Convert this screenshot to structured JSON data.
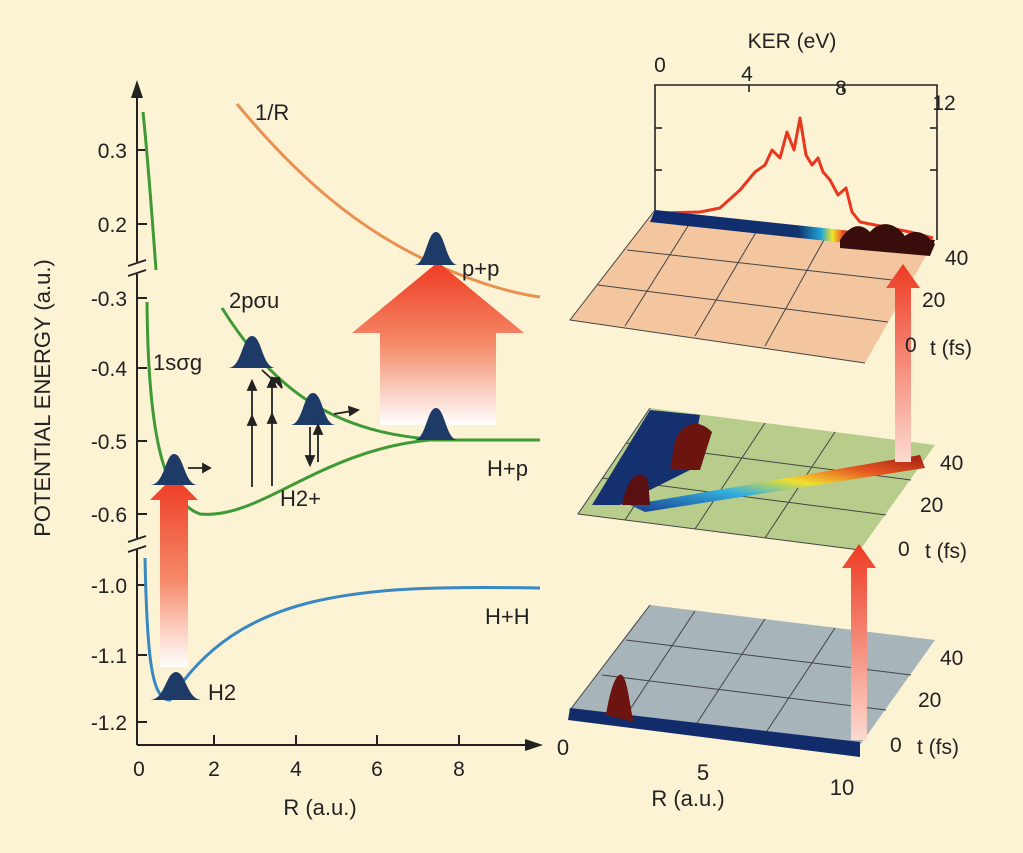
{
  "left_panel": {
    "y_axis_label": "POTENTIAL ENERGY (a.u.)",
    "x_axis_label": "R (a.u.)",
    "x_ticks": [
      "0",
      "2",
      "4",
      "6",
      "8"
    ],
    "y_ticks_upper": [
      "0.3",
      "0.2"
    ],
    "y_ticks_middle": [
      "-0.3",
      "-0.4",
      "-0.5",
      "-0.6"
    ],
    "y_ticks_lower": [
      "-1.0",
      "-1.1",
      "-1.2"
    ],
    "curve_labels": {
      "coulomb": "1/R",
      "sigma_u": "2pσu",
      "sigma_g": "1sσg",
      "proton_proton": "p+p",
      "h_plus_p": "H+p",
      "h_plus_h": "H+H",
      "h2": "H2",
      "h2_plus": "H2+"
    }
  },
  "right_panel": {
    "ker_axis_label": "KER (eV)",
    "ker_ticks": [
      "0",
      "4",
      "8",
      "12"
    ],
    "r_axis_label": "R (a.u.)",
    "r_ticks": [
      "0",
      "5",
      "10"
    ],
    "t_axis_label": "t (fs)",
    "t_ticks": [
      "0",
      "20",
      "40"
    ]
  },
  "colors": {
    "background": "#fcf3d5",
    "green_curve": "#3f9a35",
    "blue_curve": "#3a88c2",
    "orange_curve": "#e89150",
    "wavepacket": "#1e3a66",
    "arrow_red": "#ee3a22",
    "top_plane": "#f4c6a0",
    "mid_plane": "#b8cc8c",
    "bottom_plane": "#a7b4b9"
  }
}
